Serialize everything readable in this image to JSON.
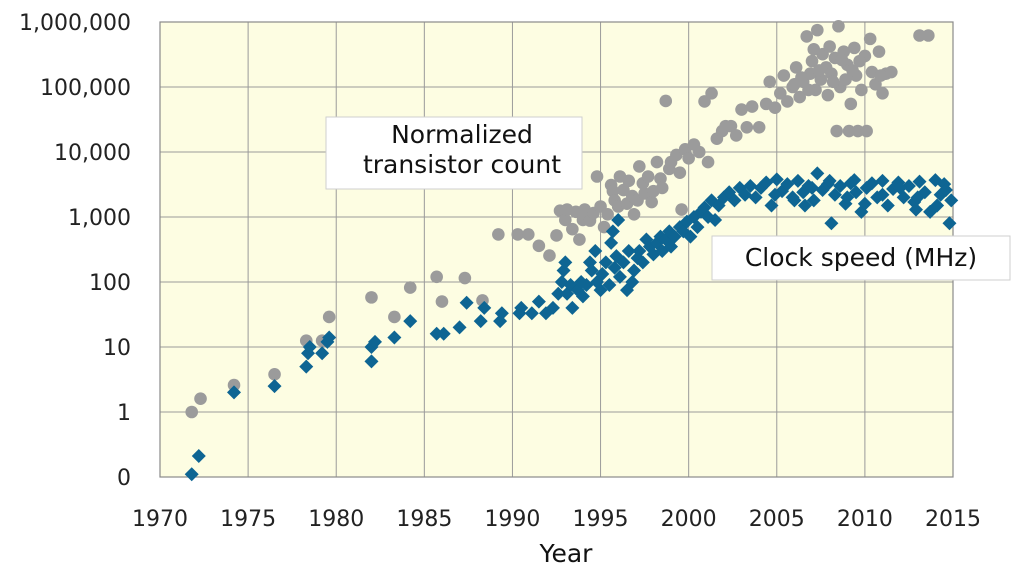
{
  "chart_data": {
    "type": "scatter",
    "xlabel": "Year",
    "ylabel": "",
    "xlim": [
      1970,
      2015
    ],
    "y_scale": "log",
    "ylim": [
      0.1,
      1000000
    ],
    "grid": true,
    "legend": "none",
    "x_ticks": [
      "1970",
      "1975",
      "1980",
      "1985",
      "1990",
      "1995",
      "2000",
      "2005",
      "2010",
      "2015"
    ],
    "y_ticks": [
      {
        "value": 0.1,
        "label": "0"
      },
      {
        "value": 1,
        "label": "1"
      },
      {
        "value": 10,
        "label": "10"
      },
      {
        "value": 100,
        "label": "100"
      },
      {
        "value": 1000,
        "label": "1,000"
      },
      {
        "value": 10000,
        "label": "10,000"
      },
      {
        "value": 100000,
        "label": "100,000"
      },
      {
        "value": 1000000,
        "label": "1,000,000"
      }
    ],
    "annotations": [
      {
        "text": [
          "Normalized",
          "transistor count"
        ],
        "target_series": "transistor"
      },
      {
        "text": [
          "Clock speed (MHz)"
        ],
        "target_series": "clock"
      }
    ],
    "colors": {
      "plot_bg": "#fdfde2",
      "grid": "#9a9a9a",
      "transistor": "#9b9b9b",
      "clock": "#0e6593"
    },
    "series": [
      {
        "key": "transistor",
        "marker": "circle",
        "points": [
          [
            1971.8,
            1.0
          ],
          [
            1972.3,
            1.6
          ],
          [
            1974.2,
            2.6
          ],
          [
            1976.5,
            3.8
          ],
          [
            1978.3,
            12.5
          ],
          [
            1979.2,
            12.5
          ],
          [
            1979.6,
            29
          ],
          [
            1982.0,
            58
          ],
          [
            1983.3,
            29
          ],
          [
            1984.2,
            82
          ],
          [
            1985.7,
            120
          ],
          [
            1986.0,
            50
          ],
          [
            1987.3,
            115
          ],
          [
            1988.3,
            52
          ],
          [
            1989.2,
            540
          ],
          [
            1990.3,
            540
          ],
          [
            1990.9,
            540
          ],
          [
            1991.5,
            360
          ],
          [
            1992.1,
            255
          ],
          [
            1992.5,
            520
          ],
          [
            1992.7,
            1250
          ],
          [
            1993.0,
            900
          ],
          [
            1993.1,
            1300
          ],
          [
            1993.4,
            650
          ],
          [
            1993.6,
            1200
          ],
          [
            1993.8,
            450
          ],
          [
            1994.0,
            900
          ],
          [
            1994.1,
            1300
          ],
          [
            1994.4,
            880
          ],
          [
            1994.6,
            1150
          ],
          [
            1994.8,
            4200
          ],
          [
            1995.0,
            1450
          ],
          [
            1995.2,
            700
          ],
          [
            1995.4,
            1100
          ],
          [
            1995.6,
            3100
          ],
          [
            1995.7,
            2500
          ],
          [
            1995.8,
            1800
          ],
          [
            1996.0,
            1450
          ],
          [
            1996.1,
            4200
          ],
          [
            1996.3,
            2600
          ],
          [
            1996.5,
            1600
          ],
          [
            1996.6,
            3600
          ],
          [
            1996.8,
            2100
          ],
          [
            1996.9,
            1100
          ],
          [
            1997.1,
            1800
          ],
          [
            1997.2,
            6000
          ],
          [
            1997.4,
            3300
          ],
          [
            1997.5,
            2300
          ],
          [
            1997.7,
            4200
          ],
          [
            1997.9,
            1700
          ],
          [
            1998.0,
            2500
          ],
          [
            1998.2,
            7000
          ],
          [
            1998.4,
            3900
          ],
          [
            1998.5,
            2800
          ],
          [
            1998.7,
            61000
          ],
          [
            1998.9,
            5500
          ],
          [
            1999.0,
            7000
          ],
          [
            1999.3,
            9000
          ],
          [
            1999.5,
            4800
          ],
          [
            1999.6,
            1300
          ],
          [
            1999.8,
            11000
          ],
          [
            2000.0,
            8000
          ],
          [
            2000.3,
            13000
          ],
          [
            2000.6,
            10000
          ],
          [
            2000.9,
            60000
          ],
          [
            2001.1,
            7000
          ],
          [
            2001.3,
            80000
          ],
          [
            2001.6,
            16000
          ],
          [
            2001.9,
            21000
          ],
          [
            2002.1,
            25000
          ],
          [
            2002.4,
            25000
          ],
          [
            2002.7,
            18000
          ],
          [
            2003.0,
            45000
          ],
          [
            2003.3,
            24000
          ],
          [
            2003.6,
            50000
          ],
          [
            2004.0,
            24000
          ],
          [
            2004.4,
            55000
          ],
          [
            2004.6,
            120000
          ],
          [
            2004.9,
            48000
          ],
          [
            2005.2,
            80000
          ],
          [
            2005.4,
            150000
          ],
          [
            2005.6,
            60000
          ],
          [
            2005.9,
            100000
          ],
          [
            2006.1,
            200000
          ],
          [
            2006.3,
            70000
          ],
          [
            2006.5,
            120000
          ],
          [
            2006.7,
            600000
          ],
          [
            2006.9,
            160000
          ],
          [
            2007.0,
            250000
          ],
          [
            2007.2,
            90000
          ],
          [
            2007.3,
            750000
          ],
          [
            2007.5,
            130000
          ],
          [
            2007.6,
            320000
          ],
          [
            2007.8,
            200000
          ],
          [
            2007.9,
            75000
          ],
          [
            2008.0,
            420000
          ],
          [
            2008.1,
            160000
          ],
          [
            2008.3,
            280000
          ],
          [
            2008.4,
            21000
          ],
          [
            2008.5,
            860000
          ],
          [
            2008.6,
            100000
          ],
          [
            2008.8,
            350000
          ],
          [
            2008.9,
            130000
          ],
          [
            2009.0,
            220000
          ],
          [
            2009.1,
            21000
          ],
          [
            2009.2,
            55000
          ],
          [
            2009.4,
            400000
          ],
          [
            2009.5,
            150000
          ],
          [
            2009.6,
            21000
          ],
          [
            2009.8,
            90000
          ],
          [
            2010.0,
            300000
          ],
          [
            2010.1,
            21000
          ],
          [
            2010.3,
            550000
          ],
          [
            2010.4,
            170000
          ],
          [
            2010.6,
            110000
          ],
          [
            2010.8,
            350000
          ],
          [
            2011.0,
            80000
          ],
          [
            2011.2,
            160000
          ],
          [
            2011.5,
            170000
          ],
          [
            2013.1,
            620000
          ],
          [
            2013.6,
            620000
          ],
          [
            2006.0,
            110000
          ],
          [
            2007.4,
            180000
          ],
          [
            2008.2,
            120000
          ],
          [
            2009.3,
            180000
          ],
          [
            2010.9,
            150000
          ],
          [
            2006.8,
            90000
          ],
          [
            2008.7,
            260000
          ],
          [
            2007.1,
            380000
          ],
          [
            2009.7,
            250000
          ],
          [
            2006.4,
            140000
          ]
        ]
      },
      {
        "key": "clock",
        "marker": "diamond",
        "points": [
          [
            1971.8,
            0.11
          ],
          [
            1972.2,
            0.21
          ],
          [
            1974.2,
            2.0
          ],
          [
            1976.5,
            2.5
          ],
          [
            1978.3,
            5.0
          ],
          [
            1978.4,
            8.0
          ],
          [
            1978.5,
            10.0
          ],
          [
            1979.2,
            8.0
          ],
          [
            1979.5,
            12.0
          ],
          [
            1979.6,
            14.0
          ],
          [
            1982.0,
            6.0
          ],
          [
            1982.0,
            10.0
          ],
          [
            1982.2,
            12.0
          ],
          [
            1983.3,
            14.0
          ],
          [
            1984.2,
            25.0
          ],
          [
            1985.7,
            16.0
          ],
          [
            1986.1,
            16.0
          ],
          [
            1987.0,
            20.0
          ],
          [
            1987.4,
            48.0
          ],
          [
            1988.2,
            25.0
          ],
          [
            1988.4,
            40.0
          ],
          [
            1989.3,
            25.0
          ],
          [
            1989.4,
            33.0
          ],
          [
            1990.4,
            33.0
          ],
          [
            1990.5,
            40.0
          ],
          [
            1991.1,
            33.0
          ],
          [
            1991.5,
            50.0
          ],
          [
            1991.9,
            33.0
          ],
          [
            1992.3,
            40.0
          ],
          [
            1992.6,
            66.0
          ],
          [
            1992.8,
            100.0
          ],
          [
            1992.9,
            150.0
          ],
          [
            1993.0,
            200.0
          ],
          [
            1993.1,
            66.0
          ],
          [
            1993.3,
            90.0
          ],
          [
            1993.4,
            40.0
          ],
          [
            1993.7,
            75.0
          ],
          [
            1993.9,
            100.0
          ],
          [
            1994.0,
            60.0
          ],
          [
            1994.2,
            90.0
          ],
          [
            1994.4,
            200.0
          ],
          [
            1994.5,
            150.0
          ],
          [
            1994.7,
            300.0
          ],
          [
            1994.8,
            100.0
          ],
          [
            1995.0,
            75.0
          ],
          [
            1995.1,
            133.0
          ],
          [
            1995.3,
            200.0
          ],
          [
            1995.5,
            90.0
          ],
          [
            1995.6,
            400.0
          ],
          [
            1995.7,
            600.0
          ],
          [
            1995.8,
            166.0
          ],
          [
            1995.9,
            250.0
          ],
          [
            1996.0,
            900.0
          ],
          [
            1996.1,
            120.0
          ],
          [
            1996.3,
            200.0
          ],
          [
            1996.5,
            75.0
          ],
          [
            1996.6,
            300.0
          ],
          [
            1996.8,
            100.0
          ],
          [
            1996.9,
            150.0
          ],
          [
            1997.1,
            233.0
          ],
          [
            1997.2,
            300.0
          ],
          [
            1997.4,
            200.0
          ],
          [
            1997.6,
            450.0
          ],
          [
            1997.8,
            350.0
          ],
          [
            1998.0,
            266.0
          ],
          [
            1998.2,
            400.0
          ],
          [
            1998.4,
            500.0
          ],
          [
            1998.5,
            300.0
          ],
          [
            1998.7,
            450.0
          ],
          [
            1998.9,
            600.0
          ],
          [
            1999.0,
            350.0
          ],
          [
            1999.2,
            500.0
          ],
          [
            1999.5,
            700.0
          ],
          [
            1999.7,
            600.0
          ],
          [
            1999.9,
            850.0
          ],
          [
            2000.1,
            500.0
          ],
          [
            2000.3,
            1000.0
          ],
          [
            2000.5,
            700.0
          ],
          [
            2000.7,
            1200.0
          ],
          [
            2000.9,
            1400.0
          ],
          [
            2001.1,
            1000.0
          ],
          [
            2001.3,
            1800.0
          ],
          [
            2001.5,
            900.0
          ],
          [
            2001.7,
            1500.0
          ],
          [
            2002.0,
            2000.0
          ],
          [
            2002.3,
            2400.0
          ],
          [
            2002.6,
            1800.0
          ],
          [
            2002.9,
            2800.0
          ],
          [
            2003.2,
            2200.0
          ],
          [
            2003.5,
            3000.0
          ],
          [
            2003.8,
            2000.0
          ],
          [
            2004.1,
            2800.0
          ],
          [
            2004.4,
            3400.0
          ],
          [
            2004.7,
            1500.0
          ],
          [
            2005.0,
            3800.0
          ],
          [
            2005.3,
            2500.0
          ],
          [
            2005.6,
            3200.0
          ],
          [
            2005.9,
            2000.0
          ],
          [
            2006.2,
            3600.0
          ],
          [
            2006.5,
            2400.0
          ],
          [
            2006.8,
            3000.0
          ],
          [
            2007.1,
            1800.0
          ],
          [
            2007.3,
            4700.0
          ],
          [
            2007.6,
            2600.0
          ],
          [
            2007.9,
            3200.0
          ],
          [
            2008.1,
            800.0
          ],
          [
            2008.3,
            2200.0
          ],
          [
            2008.6,
            3000.0
          ],
          [
            2008.9,
            1600.0
          ],
          [
            2009.2,
            3300.0
          ],
          [
            2009.5,
            2400.0
          ],
          [
            2009.8,
            1200.0
          ],
          [
            2010.1,
            2800.0
          ],
          [
            2010.4,
            3300.0
          ],
          [
            2010.7,
            2000.0
          ],
          [
            2011.0,
            3600.0
          ],
          [
            2011.3,
            1500.0
          ],
          [
            2011.6,
            2700.0
          ],
          [
            2011.9,
            3400.0
          ],
          [
            2012.2,
            2000.0
          ],
          [
            2012.5,
            3000.0
          ],
          [
            2012.8,
            1700.0
          ],
          [
            2013.1,
            3500.0
          ],
          [
            2013.4,
            2400.0
          ],
          [
            2013.7,
            1200.0
          ],
          [
            2014.0,
            3700.0
          ],
          [
            2014.3,
            2200.0
          ],
          [
            2014.5,
            3200.0
          ],
          [
            2014.8,
            800.0
          ],
          [
            2014.9,
            1800.0
          ],
          [
            2006.0,
            1800.0
          ],
          [
            2007.0,
            2800.0
          ],
          [
            2008.0,
            3600.0
          ],
          [
            2009.0,
            2000.0
          ],
          [
            2010.0,
            1600.0
          ],
          [
            2011.0,
            2200.0
          ],
          [
            2012.0,
            2800.0
          ],
          [
            2013.0,
            2000.0
          ],
          [
            2014.1,
            1500.0
          ],
          [
            2004.9,
            2200.0
          ],
          [
            2006.6,
            1500.0
          ],
          [
            2009.4,
            3700.0
          ],
          [
            2012.9,
            1300.0
          ],
          [
            2014.6,
            2600.0
          ]
        ]
      }
    ]
  }
}
